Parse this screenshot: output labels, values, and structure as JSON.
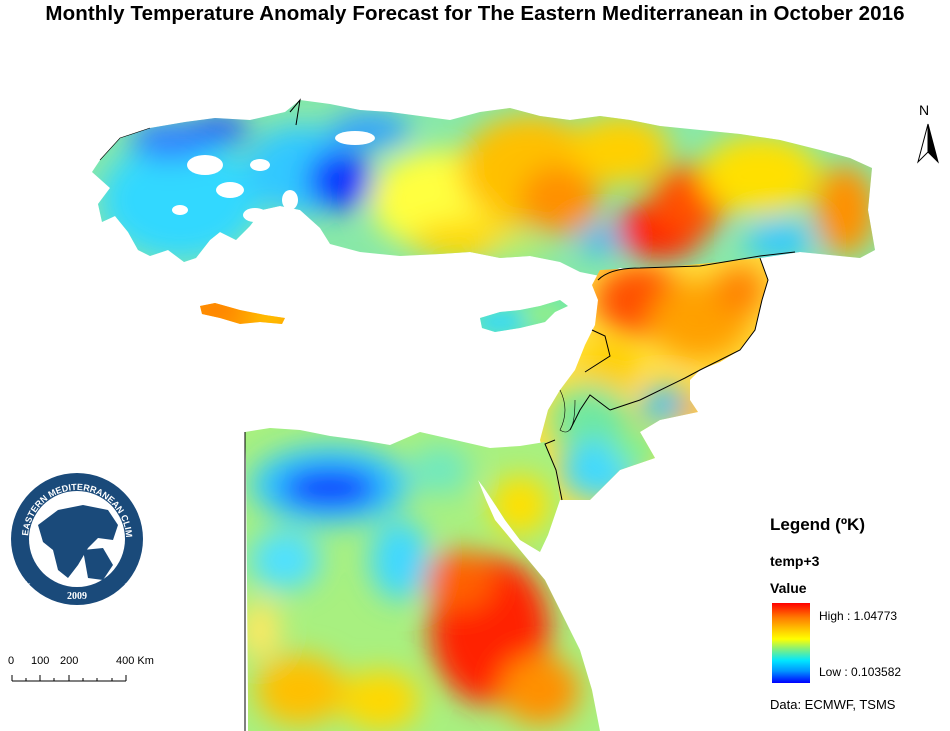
{
  "title": "Monthly Temperature Anomaly Forecast for The Eastern Mediterranean in October 2016",
  "north_arrow": {
    "letter": "N",
    "icon": "north-arrow-icon"
  },
  "logo": {
    "text_ring": "EASTERN MEDITERRANEAN CLIMATE CENTRE",
    "year": "2009",
    "colors": {
      "ring": "#1a4a7a",
      "land": "#1a4a7a"
    }
  },
  "scale_bar": {
    "labels": [
      "0",
      "100",
      "200",
      "400 Km"
    ]
  },
  "legend": {
    "title": "Legend (ºK)",
    "layer": "temp+3",
    "field": "Value",
    "high_label": "High : 1.04773",
    "low_label": "Low : 0.103582",
    "high_value": 1.04773,
    "low_value": 0.103582,
    "source": "Data:  ECMWF, TSMS",
    "colors": {
      "high": "#ff0000",
      "mid": "#ffff00",
      "low": "#0000ff"
    }
  }
}
